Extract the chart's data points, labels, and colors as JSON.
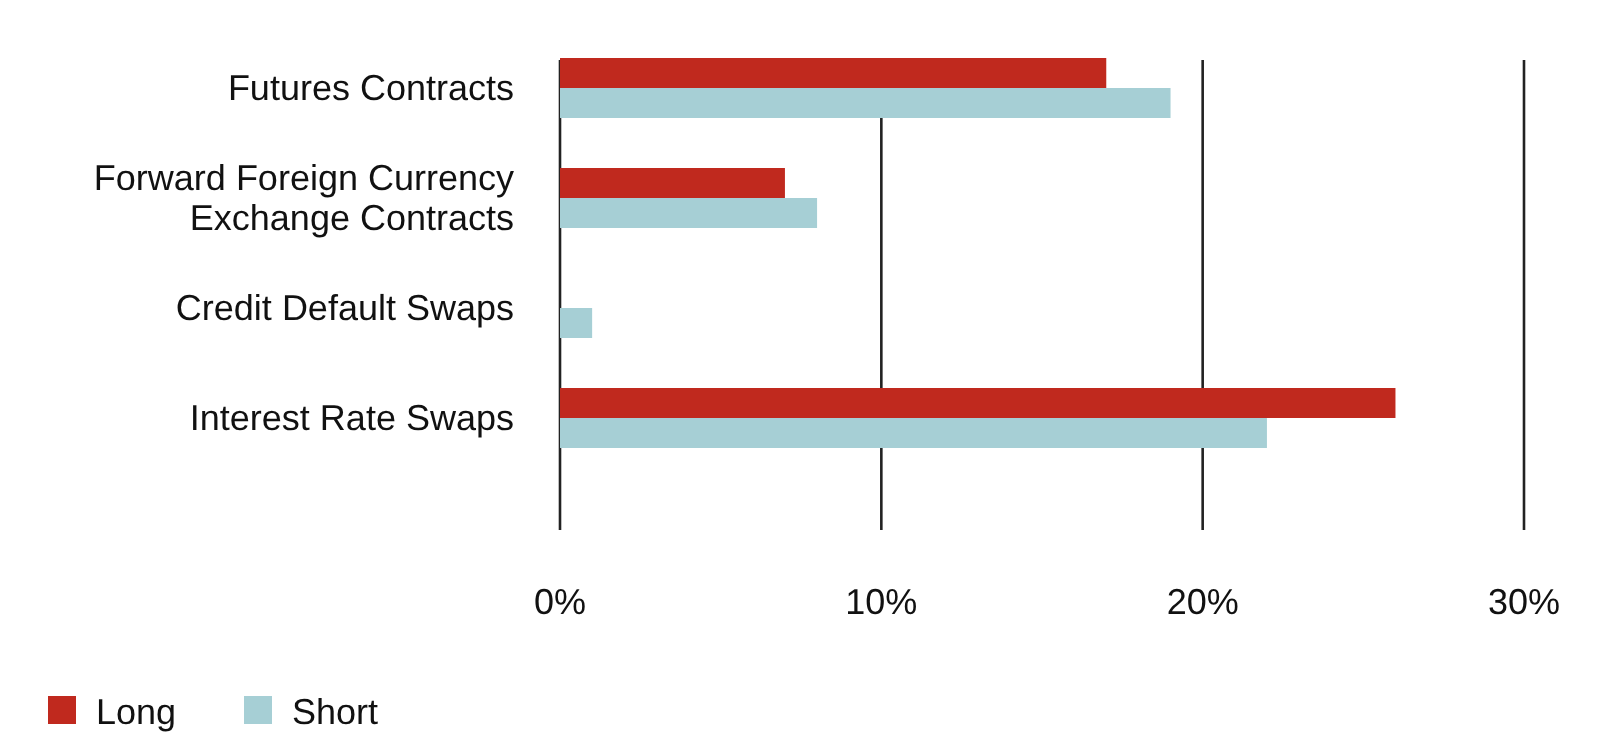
{
  "chart_data": {
    "type": "bar",
    "orientation": "horizontal",
    "categories": [
      "Futures Contracts",
      "Forward Foreign Currency Exchange Contracts",
      "Credit Default Swaps",
      "Interest Rate Swaps"
    ],
    "series": [
      {
        "name": "Long",
        "color": "#c0291e",
        "values": [
          17,
          7,
          null,
          26
        ]
      },
      {
        "name": "Short",
        "color": "#a6cfd5",
        "values": [
          19,
          8,
          1,
          22
        ]
      }
    ],
    "xlim": [
      0,
      30
    ],
    "xticks": [
      {
        "value": 0,
        "label": "0%"
      },
      {
        "value": 10,
        "label": "10%"
      },
      {
        "value": 20,
        "label": "20%"
      },
      {
        "value": 30,
        "label": "30%"
      }
    ],
    "grid": "x",
    "legend": "bottom left"
  }
}
